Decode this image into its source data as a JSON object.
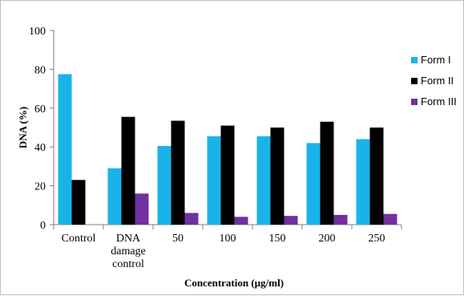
{
  "chart_data": {
    "type": "bar",
    "title": "",
    "xlabel": "Concentration (µg/ml)",
    "ylabel": "DNA (%)",
    "ylim": [
      0,
      100
    ],
    "yticks": [
      0,
      20,
      40,
      60,
      80,
      100
    ],
    "grid": false,
    "legend_position": "right",
    "categories": [
      [
        "Control"
      ],
      [
        "DNA",
        "damage",
        "control"
      ],
      [
        "50"
      ],
      [
        "100"
      ],
      [
        "150"
      ],
      [
        "200"
      ],
      [
        "250"
      ]
    ],
    "series": [
      {
        "name": "Form I",
        "color": "#1ab3e8",
        "values": [
          77.5,
          29,
          40.5,
          45.5,
          45.5,
          42,
          44
        ]
      },
      {
        "name": "Form II",
        "color": "#000000",
        "values": [
          23,
          55.5,
          53.5,
          51,
          50,
          53,
          50
        ]
      },
      {
        "name": "Form III",
        "color": "#7030a0",
        "values": [
          0,
          16,
          6,
          4,
          4.5,
          5,
          5.5
        ]
      }
    ]
  }
}
